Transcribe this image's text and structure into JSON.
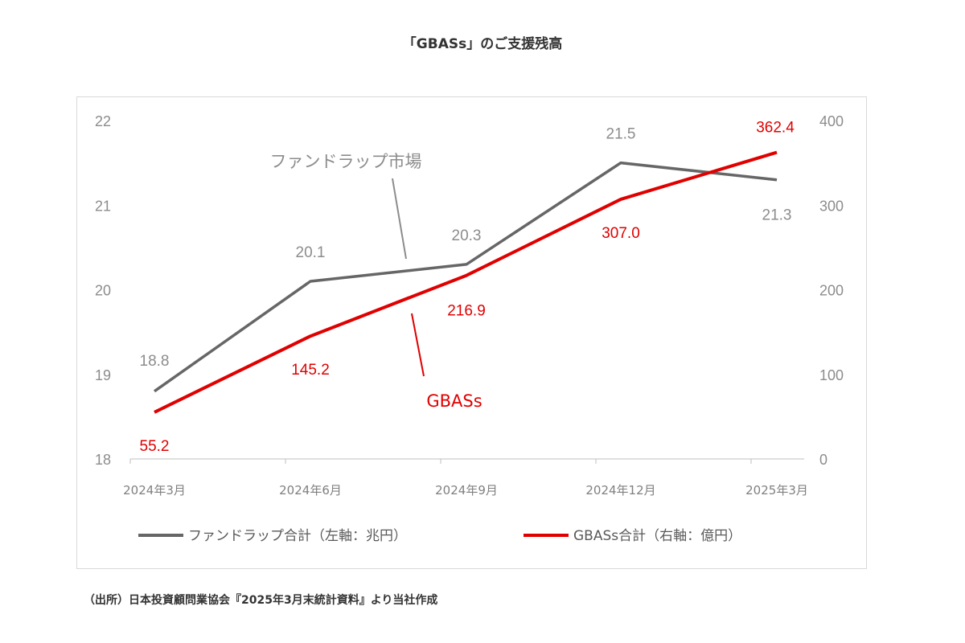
{
  "title": "「GBASs」のご支援残高",
  "source": "（出所）日本投資顧問業協会『2025年3月末統計資料』より当社作成",
  "colors": {
    "market": "#666666",
    "gbass": "#e00000"
  },
  "chart_data": {
    "type": "line",
    "categories": [
      "2024年3月",
      "2024年6月",
      "2024年9月",
      "2024年12月",
      "2025年3月"
    ],
    "y_left": {
      "ylim": [
        18,
        22
      ],
      "ticks": [
        "18",
        "19",
        "20",
        "21",
        "22"
      ]
    },
    "y_right": {
      "ylim": [
        0,
        400
      ],
      "ticks": [
        "0",
        "100",
        "200",
        "300",
        "400"
      ]
    },
    "series": [
      {
        "name": "ファンドラップ合計（左軸：兆円）",
        "axis": "left",
        "values": [
          18.8,
          20.1,
          20.3,
          21.5,
          21.3
        ],
        "labels": [
          "18.8",
          "20.1",
          "20.3",
          "21.5",
          "21.3"
        ]
      },
      {
        "name": "GBASs合計（右軸：億円）",
        "axis": "right",
        "values": [
          55.2,
          145.2,
          216.9,
          307.0,
          362.4
        ],
        "labels": [
          "55.2",
          "145.2",
          "216.9",
          "307.0",
          "362.4"
        ]
      }
    ],
    "annotations": [
      "ファンドラップ市場",
      "GBASs"
    ],
    "grid": false,
    "legend_position": "bottom"
  }
}
